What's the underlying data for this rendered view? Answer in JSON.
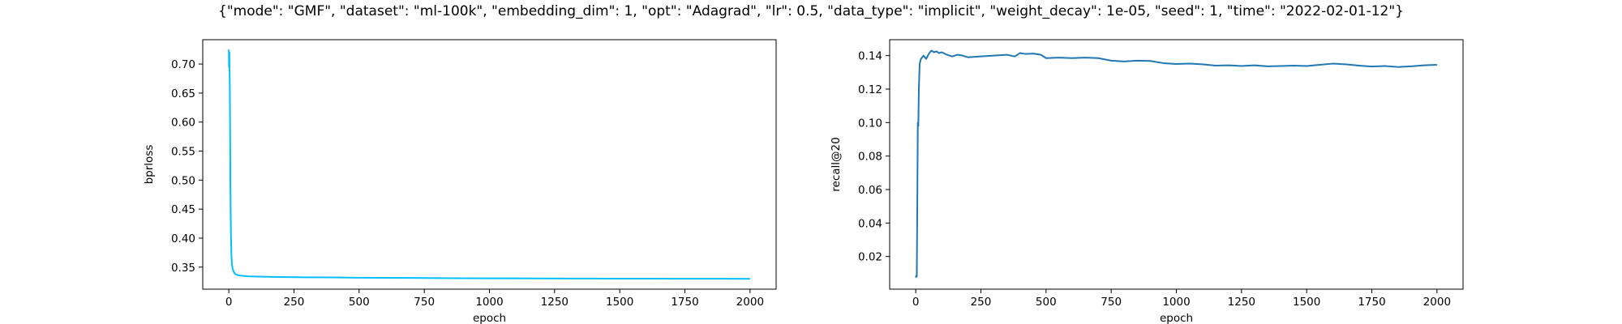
{
  "figure_title": "{\"mode\": \"GMF\", \"dataset\": \"ml-100k\", \"embedding_dim\": 1, \"opt\": \"Adagrad\", \"lr\": 0.5, \"data_type\": \"implicit\", \"weight_decay\": 1e-05, \"seed\": 1, \"time\": \"2022-02-01-12\"}",
  "chart_data": [
    {
      "type": "line",
      "xlabel": "epoch",
      "ylabel": "bprloss",
      "xlim": [
        -100,
        2100
      ],
      "ylim": [
        0.312,
        0.742
      ],
      "xticks": [
        0,
        250,
        500,
        750,
        1000,
        1250,
        1500,
        1750,
        2000
      ],
      "yticks": [
        0.35,
        0.4,
        0.45,
        0.5,
        0.55,
        0.6,
        0.65,
        0.7
      ],
      "ytick_decimals": 2,
      "color": "#00bfff",
      "grid": false,
      "series": [
        {
          "x": [
            0,
            1,
            2,
            3,
            4,
            5,
            6,
            7,
            8,
            10,
            12,
            15,
            20,
            25,
            30,
            40,
            50,
            75,
            100,
            150,
            200,
            300,
            400,
            500,
            600,
            700,
            800,
            900,
            1000,
            1100,
            1200,
            1300,
            1400,
            1500,
            1600,
            1700,
            1800,
            1900,
            2000
          ],
          "y": [
            0.725,
            0.695,
            0.72,
            0.69,
            0.65,
            0.58,
            0.5,
            0.45,
            0.41,
            0.37,
            0.355,
            0.347,
            0.341,
            0.338,
            0.337,
            0.3355,
            0.335,
            0.3342,
            0.3338,
            0.3333,
            0.333,
            0.3325,
            0.3322,
            0.3318,
            0.3315,
            0.3313,
            0.3311,
            0.3309,
            0.3307,
            0.3306,
            0.3305,
            0.3304,
            0.3303,
            0.3302,
            0.3301,
            0.33,
            0.33,
            0.3299,
            0.3298
          ]
        }
      ]
    },
    {
      "type": "line",
      "xlabel": "epoch",
      "ylabel": "recall@20",
      "xlim": [
        -100,
        2100
      ],
      "ylim": [
        0.0005,
        0.1495
      ],
      "xticks": [
        0,
        250,
        500,
        750,
        1000,
        1250,
        1500,
        1750,
        2000
      ],
      "yticks": [
        0.02,
        0.04,
        0.06,
        0.08,
        0.1,
        0.12,
        0.14
      ],
      "ytick_decimals": 2,
      "color": "#1f77b4",
      "grid": false,
      "series": [
        {
          "x": [
            0,
            2,
            4,
            6,
            8,
            10,
            12,
            15,
            20,
            25,
            30,
            40,
            50,
            60,
            70,
            80,
            90,
            100,
            120,
            140,
            160,
            180,
            200,
            250,
            300,
            350,
            380,
            400,
            420,
            450,
            480,
            500,
            550,
            600,
            650,
            700,
            750,
            800,
            850,
            900,
            950,
            1000,
            1050,
            1100,
            1150,
            1200,
            1250,
            1300,
            1350,
            1400,
            1450,
            1500,
            1550,
            1600,
            1650,
            1700,
            1750,
            1800,
            1850,
            1900,
            1950,
            2000
          ],
          "y": [
            0.0075,
            0.0085,
            0.008,
            0.05,
            0.1,
            0.098,
            0.12,
            0.135,
            0.138,
            0.139,
            0.14,
            0.138,
            0.141,
            0.143,
            0.142,
            0.1425,
            0.1415,
            0.142,
            0.1405,
            0.1395,
            0.1405,
            0.14,
            0.139,
            0.1395,
            0.14,
            0.1405,
            0.1395,
            0.1415,
            0.141,
            0.1412,
            0.1405,
            0.1385,
            0.1388,
            0.1385,
            0.1388,
            0.1385,
            0.137,
            0.1365,
            0.137,
            0.1368,
            0.1355,
            0.135,
            0.1352,
            0.1348,
            0.134,
            0.1342,
            0.1338,
            0.1342,
            0.1336,
            0.1338,
            0.134,
            0.1338,
            0.1345,
            0.1352,
            0.1348,
            0.134,
            0.1335,
            0.1338,
            0.1332,
            0.1336,
            0.1342,
            0.1345
          ]
        }
      ]
    }
  ]
}
